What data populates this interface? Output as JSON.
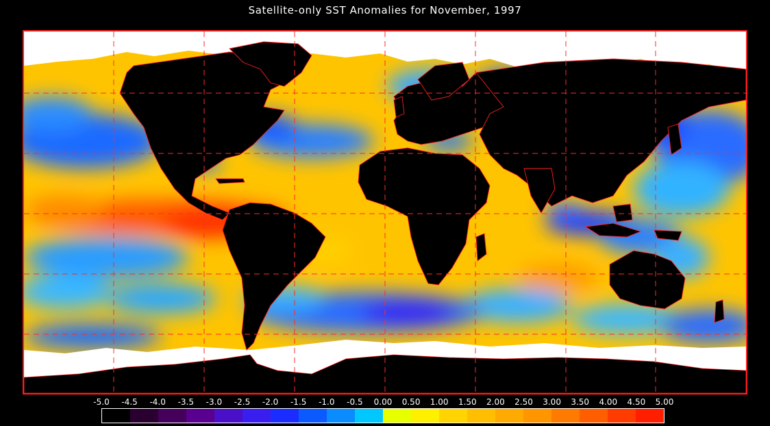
{
  "title": "Satellite-only SST Anomalies for November, 1997",
  "colorbar": {
    "tick_labels": [
      "-5.0",
      "-4.5",
      "-4.0",
      "-3.5",
      "-3.0",
      "-2.5",
      "-2.0",
      "-1.5",
      "-1.0",
      "-0.5",
      "0.00",
      "0.50",
      "1.00",
      "1.50",
      "2.00",
      "2.50",
      "3.00",
      "3.50",
      "4.00",
      "4.50",
      "5.00"
    ],
    "colors": [
      "#000000",
      "#2a0030",
      "#45005c",
      "#5a0090",
      "#4a10c8",
      "#3a1ef0",
      "#1a2cff",
      "#0a5aff",
      "#0a8cff",
      "#00c8ff",
      "#e8ff00",
      "#fff000",
      "#ffd400",
      "#ffbe00",
      "#ffaa00",
      "#ff9600",
      "#ff7a00",
      "#ff5e00",
      "#ff3c00",
      "#ff1e00"
    ]
  },
  "map": {
    "projection": "equirectangular",
    "land_color": "#000000",
    "ice_color": "#ffffff",
    "border_color": "#ff1e1e",
    "gridline_color": "#ff2a2a",
    "gridlines": "dashed"
  }
}
